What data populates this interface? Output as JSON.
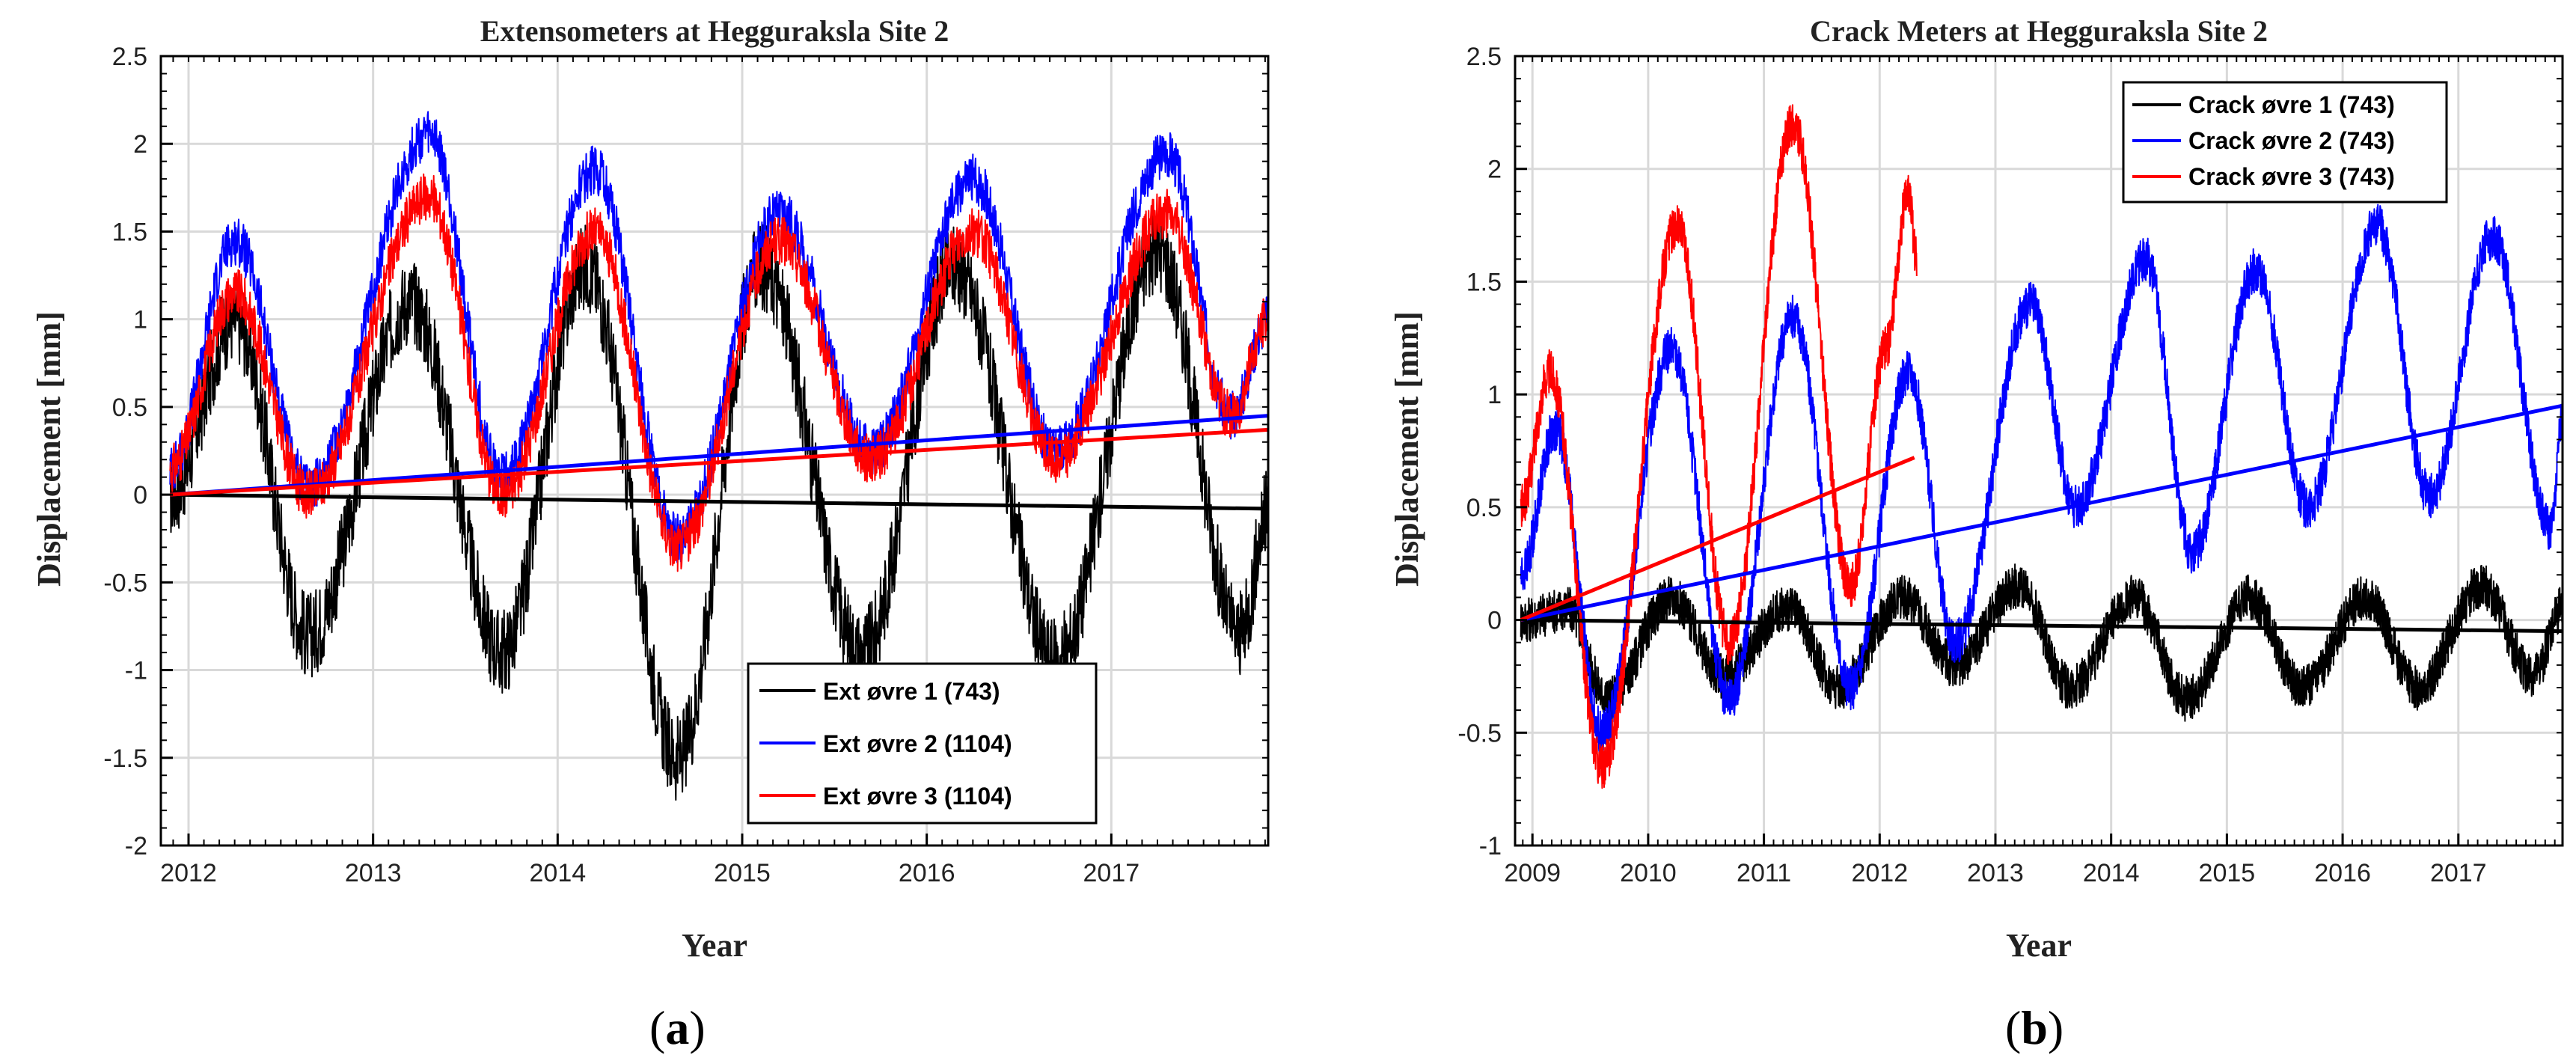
{
  "chart_data": [
    {
      "type": "line",
      "panel_label": "a",
      "title": "Extensometers at Hegguraksla Site 2",
      "xlabel": "Year",
      "ylabel": "Displacement [mm]",
      "xlim": [
        2011.85,
        2017.85
      ],
      "ylim": [
        -2,
        2.5
      ],
      "xticks": [
        2012,
        2013,
        2014,
        2015,
        2016,
        2017
      ],
      "xtick_labels": [
        "2012",
        "2013",
        "2014",
        "2015",
        "2016",
        "2017"
      ],
      "yticks": [
        -2,
        -1.5,
        -1,
        -0.5,
        0,
        0.5,
        1,
        1.5,
        2,
        2.5
      ],
      "ytick_labels": [
        "-2",
        "-1.5",
        "-1",
        "-0.5",
        "0",
        "0.5",
        "1",
        "1.5",
        "2",
        "2.5"
      ],
      "grid": true,
      "legend_position": "bottom-right",
      "series": [
        {
          "name": "Ext øvre 1 (743)",
          "color": "#000000",
          "noise": 0.25,
          "x": [
            2011.9,
            2012.25,
            2012.65,
            2013.2,
            2013.7,
            2014.15,
            2014.65,
            2015.1,
            2015.65,
            2016.15,
            2016.7,
            2017.25,
            2017.7,
            2017.85
          ],
          "y": [
            0.0,
            1.0,
            -0.8,
            1.1,
            -0.9,
            1.3,
            -1.5,
            1.3,
            -0.9,
            1.3,
            -0.95,
            1.4,
            -0.8,
            -0.1
          ],
          "trend": {
            "x": [
              2011.9,
              2017.85
            ],
            "y": [
              0.0,
              -0.08
            ]
          }
        },
        {
          "name": "Ext øvre 2 (1104)",
          "color": "#0000ff",
          "noise": 0.14,
          "x": [
            2011.9,
            2012.25,
            2012.65,
            2013.3,
            2013.7,
            2014.2,
            2014.65,
            2015.2,
            2015.7,
            2016.25,
            2016.7,
            2017.3,
            2017.65,
            2017.85
          ],
          "y": [
            0.15,
            1.45,
            0.05,
            2.05,
            0.1,
            1.85,
            -0.25,
            1.6,
            0.25,
            1.8,
            0.25,
            1.95,
            0.45,
            1.0
          ],
          "trend": {
            "x": [
              2011.9,
              2017.85
            ],
            "y": [
              0.0,
              0.45
            ]
          }
        },
        {
          "name": "Ext øvre 3 (1104)",
          "color": "#ff0000",
          "noise": 0.14,
          "x": [
            2011.9,
            2012.25,
            2012.65,
            2013.3,
            2013.7,
            2014.2,
            2014.65,
            2015.2,
            2015.7,
            2016.25,
            2016.7,
            2017.3,
            2017.65,
            2017.85
          ],
          "y": [
            0.15,
            1.15,
            0.0,
            1.7,
            0.0,
            1.5,
            -0.3,
            1.45,
            0.2,
            1.5,
            0.2,
            1.6,
            0.45,
            1.0
          ],
          "trend": {
            "x": [
              2011.9,
              2017.85
            ],
            "y": [
              0.0,
              0.37
            ]
          }
        }
      ]
    },
    {
      "type": "line",
      "panel_label": "b",
      "title": "Crack Meters at Hegguraksla Site 2",
      "xlabel": "Year",
      "ylabel": "Displacement [mm]",
      "xlim": [
        2008.85,
        2017.9
      ],
      "ylim": [
        -1,
        2.5
      ],
      "xticks": [
        2009,
        2010,
        2011,
        2012,
        2013,
        2014,
        2015,
        2016,
        2017
      ],
      "xtick_labels": [
        "2009",
        "2010",
        "2011",
        "2012",
        "2013",
        "2014",
        "2015",
        "2016",
        "2017"
      ],
      "yticks": [
        -1,
        -0.5,
        0,
        0.5,
        1,
        1.5,
        2,
        2.5
      ],
      "ytick_labels": [
        "-1",
        "-0.5",
        "0",
        "0.5",
        "1",
        "1.5",
        "2",
        "2.5"
      ],
      "grid": true,
      "legend_position": "top-right",
      "series": [
        {
          "name": "Crack øvre 1 (743)",
          "color": "#000000",
          "noise": 0.1,
          "x": [
            2008.9,
            2009.3,
            2009.65,
            2010.2,
            2010.65,
            2011.2,
            2011.65,
            2012.2,
            2012.65,
            2013.2,
            2013.65,
            2014.2,
            2014.65,
            2015.2,
            2015.65,
            2016.2,
            2016.65,
            2017.2,
            2017.65,
            2017.9
          ],
          "y": [
            0.0,
            0.05,
            -0.35,
            0.1,
            -0.25,
            0.05,
            -0.3,
            0.1,
            -0.2,
            0.15,
            -0.3,
            0.1,
            -0.35,
            0.1,
            -0.3,
            0.1,
            -0.3,
            0.15,
            -0.25,
            0.05
          ],
          "trend": {
            "x": [
              2008.9,
              2017.9
            ],
            "y": [
              0.0,
              -0.05
            ]
          }
        },
        {
          "name": "Crack øvre 2 (743)",
          "color": "#0000ff",
          "noise": 0.1,
          "x": [
            2008.9,
            2009.2,
            2009.6,
            2010.2,
            2010.7,
            2011.25,
            2011.75,
            2012.25,
            2012.65,
            2013.3,
            2013.7,
            2014.3,
            2014.7,
            2015.25,
            2015.7,
            2016.3,
            2016.75,
            2017.3,
            2017.8,
            2017.9
          ],
          "y": [
            0.2,
            0.85,
            -0.5,
            1.2,
            -0.35,
            1.35,
            -0.3,
            1.1,
            -0.1,
            1.4,
            0.5,
            1.6,
            0.3,
            1.55,
            0.5,
            1.75,
            0.55,
            1.7,
            0.4,
            0.9
          ],
          "trend": {
            "x": [
              2008.9,
              2017.9
            ],
            "y": [
              0.0,
              0.95
            ]
          }
        },
        {
          "name": "Crack øvre 3 (743)",
          "color": "#ff0000",
          "noise": 0.1,
          "x": [
            2008.9,
            2009.15,
            2009.6,
            2010.25,
            2010.7,
            2011.25,
            2011.75,
            2012.05,
            2012.25,
            2012.32
          ],
          "y": [
            0.5,
            1.1,
            -0.65,
            1.75,
            -0.1,
            2.2,
            0.15,
            1.2,
            1.9,
            1.6
          ],
          "trend": {
            "x": [
              2008.9,
              2012.3
            ],
            "y": [
              0.0,
              0.72
            ]
          }
        }
      ]
    }
  ]
}
